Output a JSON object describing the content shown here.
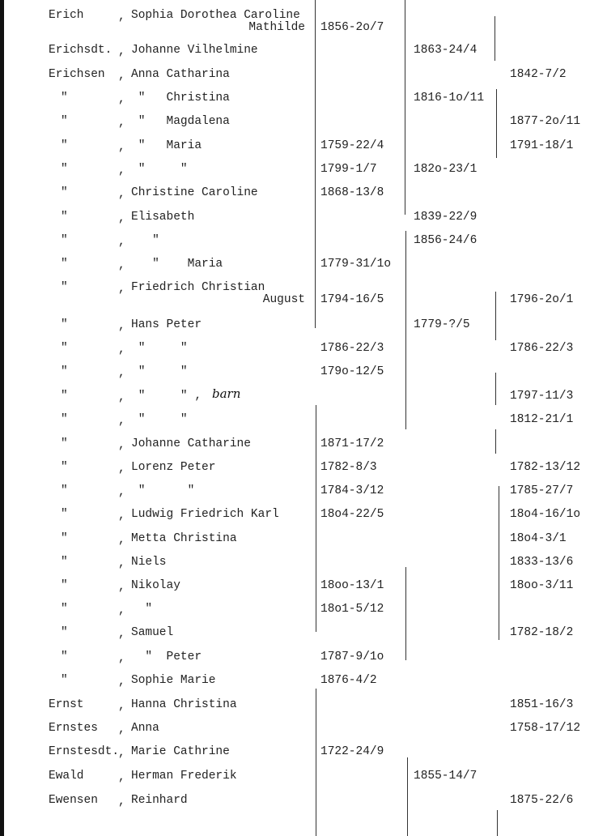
{
  "entries": [
    {
      "surname": "Erich",
      "given": "Sophia Dorothea Caroline",
      "given2": "Mathilde",
      "c1": "1856-2o/7",
      "c2": "",
      "c3": ""
    },
    {
      "surname": "Erichsdt.",
      "given": "Johanne Vilhelmine",
      "given2": "",
      "c1": "",
      "c2": "1863-24/4",
      "c3": ""
    },
    {
      "surname": "Erichsen",
      "given": "Anna Catharina",
      "given2": "",
      "c1": "",
      "c2": "",
      "c3": "1842-7/2"
    },
    {
      "surname": "\"",
      "given": " \"   Christina",
      "given2": "",
      "c1": "",
      "c2": "1816-1o/11",
      "c3": ""
    },
    {
      "surname": "\"",
      "given": " \"   Magdalena",
      "given2": "",
      "c1": "",
      "c2": "",
      "c3": "1877-2o/11"
    },
    {
      "surname": "\"",
      "given": " \"   Maria",
      "given2": "",
      "c1": "1759-22/4",
      "c2": "",
      "c3": "1791-18/1"
    },
    {
      "surname": "\"",
      "given": " \"     \"",
      "given2": "",
      "c1": "1799-1/7",
      "c2": "182o-23/1",
      "c3": ""
    },
    {
      "surname": "\"",
      "given": "Christine Caroline",
      "given2": "",
      "c1": "1868-13/8",
      "c2": "",
      "c3": ""
    },
    {
      "surname": "\"",
      "given": "Elisabeth",
      "given2": "",
      "c1": "",
      "c2": "1839-22/9",
      "c3": ""
    },
    {
      "surname": "\"",
      "given": "   \"",
      "given2": "",
      "c1": "",
      "c2": "1856-24/6",
      "c3": ""
    },
    {
      "surname": "\"",
      "given": "   \"    Maria",
      "given2": "",
      "c1": "1779-31/1o",
      "c2": "",
      "c3": ""
    },
    {
      "surname": "\"",
      "given": "Friedrich Christian",
      "given2": "August",
      "c1": "1794-16/5",
      "c2": "",
      "c3": "1796-2o/1"
    },
    {
      "surname": "\"",
      "given": "Hans Peter",
      "given2": "",
      "c1": "",
      "c2": "1779-?/5",
      "c3": ""
    },
    {
      "surname": "\"",
      "given": " \"     \"",
      "given2": "",
      "c1": "1786-22/3",
      "c2": "",
      "c3": "1786-22/3"
    },
    {
      "surname": "\"",
      "given": " \"     \"",
      "given2": "",
      "c1": "179o-12/5",
      "c2": "",
      "c3": ""
    },
    {
      "surname": "\"",
      "given": " \"     \" ,",
      "given2": "",
      "c1": "",
      "c2": "",
      "c3": "1797-11/3",
      "note": "barn"
    },
    {
      "surname": "\"",
      "given": " \"     \"",
      "given2": "",
      "c1": "",
      "c2": "",
      "c3": "1812-21/1"
    },
    {
      "surname": "\"",
      "given": "Johanne Catharine",
      "given2": "",
      "c1": "1871-17/2",
      "c2": "",
      "c3": ""
    },
    {
      "surname": "\"",
      "given": "Lorenz Peter",
      "given2": "",
      "c1": "1782-8/3",
      "c2": "",
      "c3": "1782-13/12"
    },
    {
      "surname": "\"",
      "given": " \"      \"",
      "given2": "",
      "c1": "1784-3/12",
      "c2": "",
      "c3": "1785-27/7"
    },
    {
      "surname": "\"",
      "given": "Ludwig Friedrich Karl",
      "given2": "",
      "c1": "18o4-22/5",
      "c2": "",
      "c3": "18o4-16/1o"
    },
    {
      "surname": "\"",
      "given": "Metta Christina",
      "given2": "",
      "c1": "",
      "c2": "",
      "c3": "18o4-3/1"
    },
    {
      "surname": "\"",
      "given": "Niels",
      "given2": "",
      "c1": "",
      "c2": "",
      "c3": "1833-13/6"
    },
    {
      "surname": "\"",
      "given": "Nikolay",
      "given2": "",
      "c1": "18oo-13/1",
      "c2": "",
      "c3": "18oo-3/11"
    },
    {
      "surname": "\"",
      "given": "  \"",
      "given2": "",
      "c1": "18o1-5/12",
      "c2": "",
      "c3": ""
    },
    {
      "surname": "\"",
      "given": "Samuel",
      "given2": "",
      "c1": "",
      "c2": "",
      "c3": "1782-18/2"
    },
    {
      "surname": "\"",
      "given": "  \"  Peter",
      "given2": "",
      "c1": "1787-9/1o",
      "c2": "",
      "c3": ""
    },
    {
      "surname": "\"",
      "given": "Sophie Marie",
      "given2": "",
      "c1": "1876-4/2",
      "c2": "",
      "c3": ""
    },
    {
      "surname": "Ernst",
      "given": "Hanna Christina",
      "given2": "",
      "c1": "",
      "c2": "",
      "c3": "1851-16/3"
    },
    {
      "surname": "Ernstes",
      "given": "Anna",
      "given2": "",
      "c1": "",
      "c2": "",
      "c3": "1758-17/12"
    },
    {
      "surname": "Ernstesdt.",
      "given": "Marie Cathrine",
      "given2": "",
      "c1": "1722-24/9",
      "c2": "",
      "c3": ""
    },
    {
      "surname": "Ewald",
      "given": "Herman Frederik",
      "given2": "",
      "c1": "",
      "c2": "1855-14/7",
      "c3": ""
    },
    {
      "surname": "Ewensen",
      "given": "Reinhard",
      "given2": "",
      "c1": "",
      "c2": "",
      "c3": "1875-22/6"
    }
  ]
}
